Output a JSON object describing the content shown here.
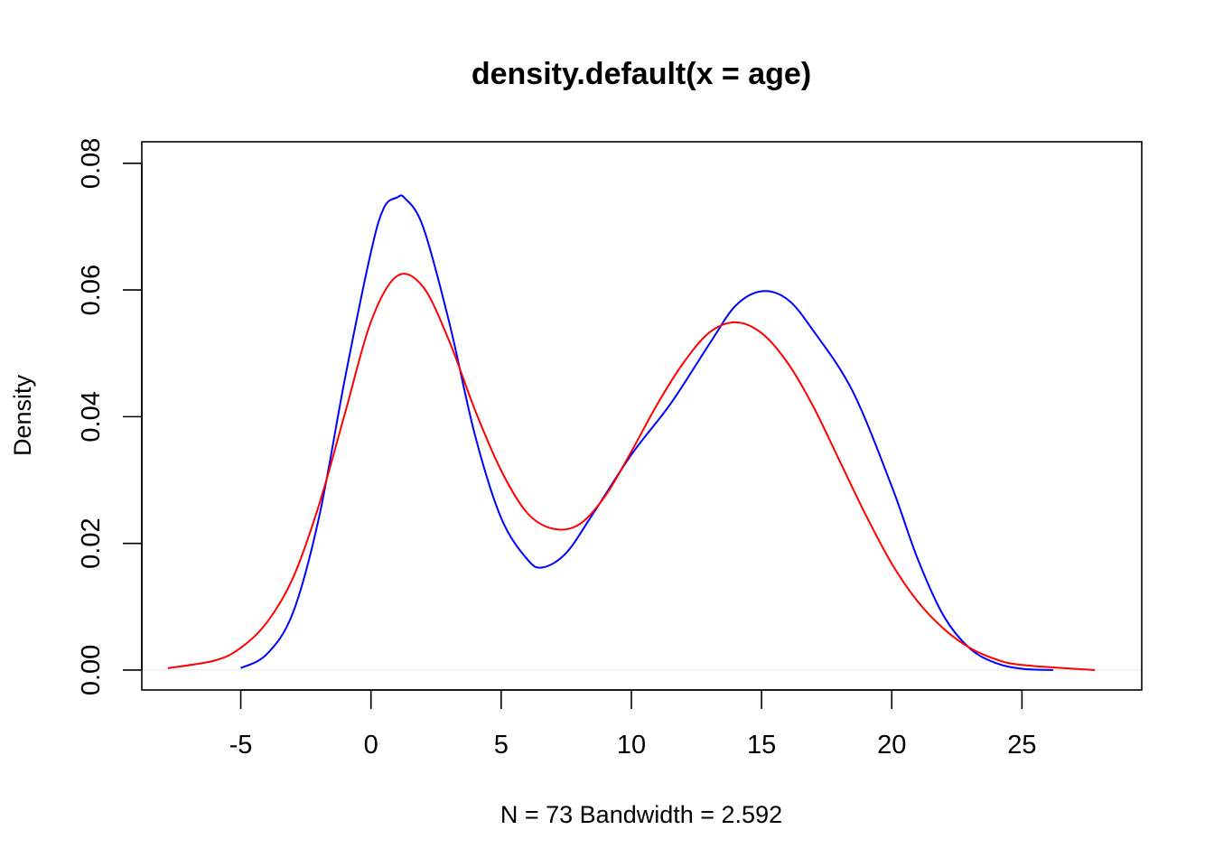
{
  "chart_data": {
    "type": "line",
    "title": "density.default(x = age)",
    "xlabel": "N = 73   Bandwidth = 2.592",
    "ylabel": "Density",
    "xlim": [
      -8.8,
      29.6
    ],
    "ylim": [
      -0.00315,
      0.0834
    ],
    "x_ticks": [
      -5,
      0,
      5,
      10,
      15,
      20,
      25
    ],
    "x_tick_labels": [
      "-5",
      "0",
      "5",
      "10",
      "15",
      "20",
      "25"
    ],
    "y_ticks": [
      0,
      0.02,
      0.04,
      0.06,
      0.08
    ],
    "y_tick_labels": [
      "0.00",
      "0.02",
      "0.04",
      "0.06",
      "0.08"
    ],
    "grid": false,
    "legend": "none",
    "baseline": 0,
    "baseline_color": "#e6e6e6",
    "series": [
      {
        "color": "#0000ff",
        "x": [
          -5,
          -4,
          -3,
          -2,
          -1,
          0,
          0.5,
          1,
          1.3,
          2,
          3,
          4,
          5,
          6,
          6.6,
          7.5,
          8.5,
          10,
          11.5,
          13,
          14,
          15,
          16,
          17,
          18.5,
          20,
          21,
          22,
          23,
          24,
          25,
          26.2
        ],
        "y": [
          0.0003,
          0.0025,
          0.009,
          0.024,
          0.046,
          0.066,
          0.073,
          0.0746,
          0.0745,
          0.07,
          0.055,
          0.037,
          0.024,
          0.0175,
          0.0162,
          0.0185,
          0.0245,
          0.034,
          0.042,
          0.0515,
          0.0575,
          0.0598,
          0.0585,
          0.0535,
          0.044,
          0.029,
          0.0175,
          0.0085,
          0.0034,
          0.0011,
          0.0002,
          0.0
        ]
      },
      {
        "color": "#ff0000",
        "x": [
          -7.8,
          -6,
          -5,
          -4,
          -3,
          -2,
          -1,
          0,
          1,
          2,
          3,
          4,
          5,
          6,
          7,
          8,
          9,
          10,
          11,
          12,
          13,
          14,
          15,
          16,
          17,
          18,
          19,
          20,
          21,
          22,
          23,
          24,
          25,
          27.8
        ],
        "y": [
          0.0003,
          0.0015,
          0.0035,
          0.0075,
          0.0145,
          0.026,
          0.0405,
          0.055,
          0.0622,
          0.0605,
          0.052,
          0.041,
          0.0315,
          0.0248,
          0.0223,
          0.023,
          0.0275,
          0.0345,
          0.042,
          0.0485,
          0.0533,
          0.0549,
          0.0532,
          0.0485,
          0.0415,
          0.033,
          0.0245,
          0.0168,
          0.0108,
          0.0065,
          0.0035,
          0.0017,
          0.0008,
          0.0
        ]
      }
    ]
  }
}
